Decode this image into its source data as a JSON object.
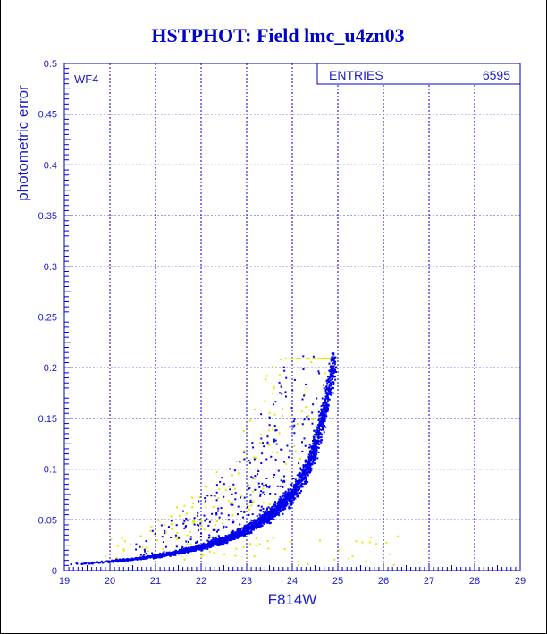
{
  "chart_data": {
    "type": "scatter",
    "title": "HSTPHOT: Field lmc_u4zn03",
    "xlabel": "F814W",
    "ylabel": "photometric error",
    "panel_label": "WF4",
    "stats_box": {
      "label": "ENTRIES",
      "value": "6595"
    },
    "xlim": [
      19,
      29
    ],
    "ylim": [
      0,
      0.5
    ],
    "xticks": [
      "19",
      "20",
      "21",
      "22",
      "23",
      "24",
      "25",
      "26",
      "27",
      "28",
      "29"
    ],
    "yticks": [
      "0",
      "0.05",
      "0.1",
      "0.15",
      "0.2",
      "0.25",
      "0.3",
      "0.35",
      "0.4",
      "0.45",
      "0.5"
    ],
    "grid": true,
    "colors": {
      "axes": "#0000cc",
      "text": "#1a1acc",
      "main_points": "#0000ee",
      "rejected_points": "#e6e600"
    },
    "series_summary": [
      {
        "color": "main_points",
        "sequence": [
          [
            19.0,
            0.006
          ],
          [
            19.5,
            0.007
          ],
          [
            20.0,
            0.009
          ],
          [
            20.5,
            0.011
          ],
          [
            21.0,
            0.014
          ],
          [
            21.5,
            0.018
          ],
          [
            22.0,
            0.023
          ],
          [
            22.5,
            0.03
          ],
          [
            23.0,
            0.04
          ],
          [
            23.5,
            0.055
          ],
          [
            24.0,
            0.075
          ],
          [
            24.3,
            0.1
          ],
          [
            24.5,
            0.125
          ],
          [
            24.7,
            0.16
          ],
          [
            24.85,
            0.195
          ],
          [
            24.95,
            0.215
          ]
        ],
        "x_range": [
          19.0,
          24.95
        ],
        "y_range": [
          0.005,
          0.215
        ]
      },
      {
        "color": "rejected_points",
        "x_range": [
          19.5,
          26.3
        ],
        "y_range": [
          0.005,
          0.21
        ]
      }
    ]
  }
}
